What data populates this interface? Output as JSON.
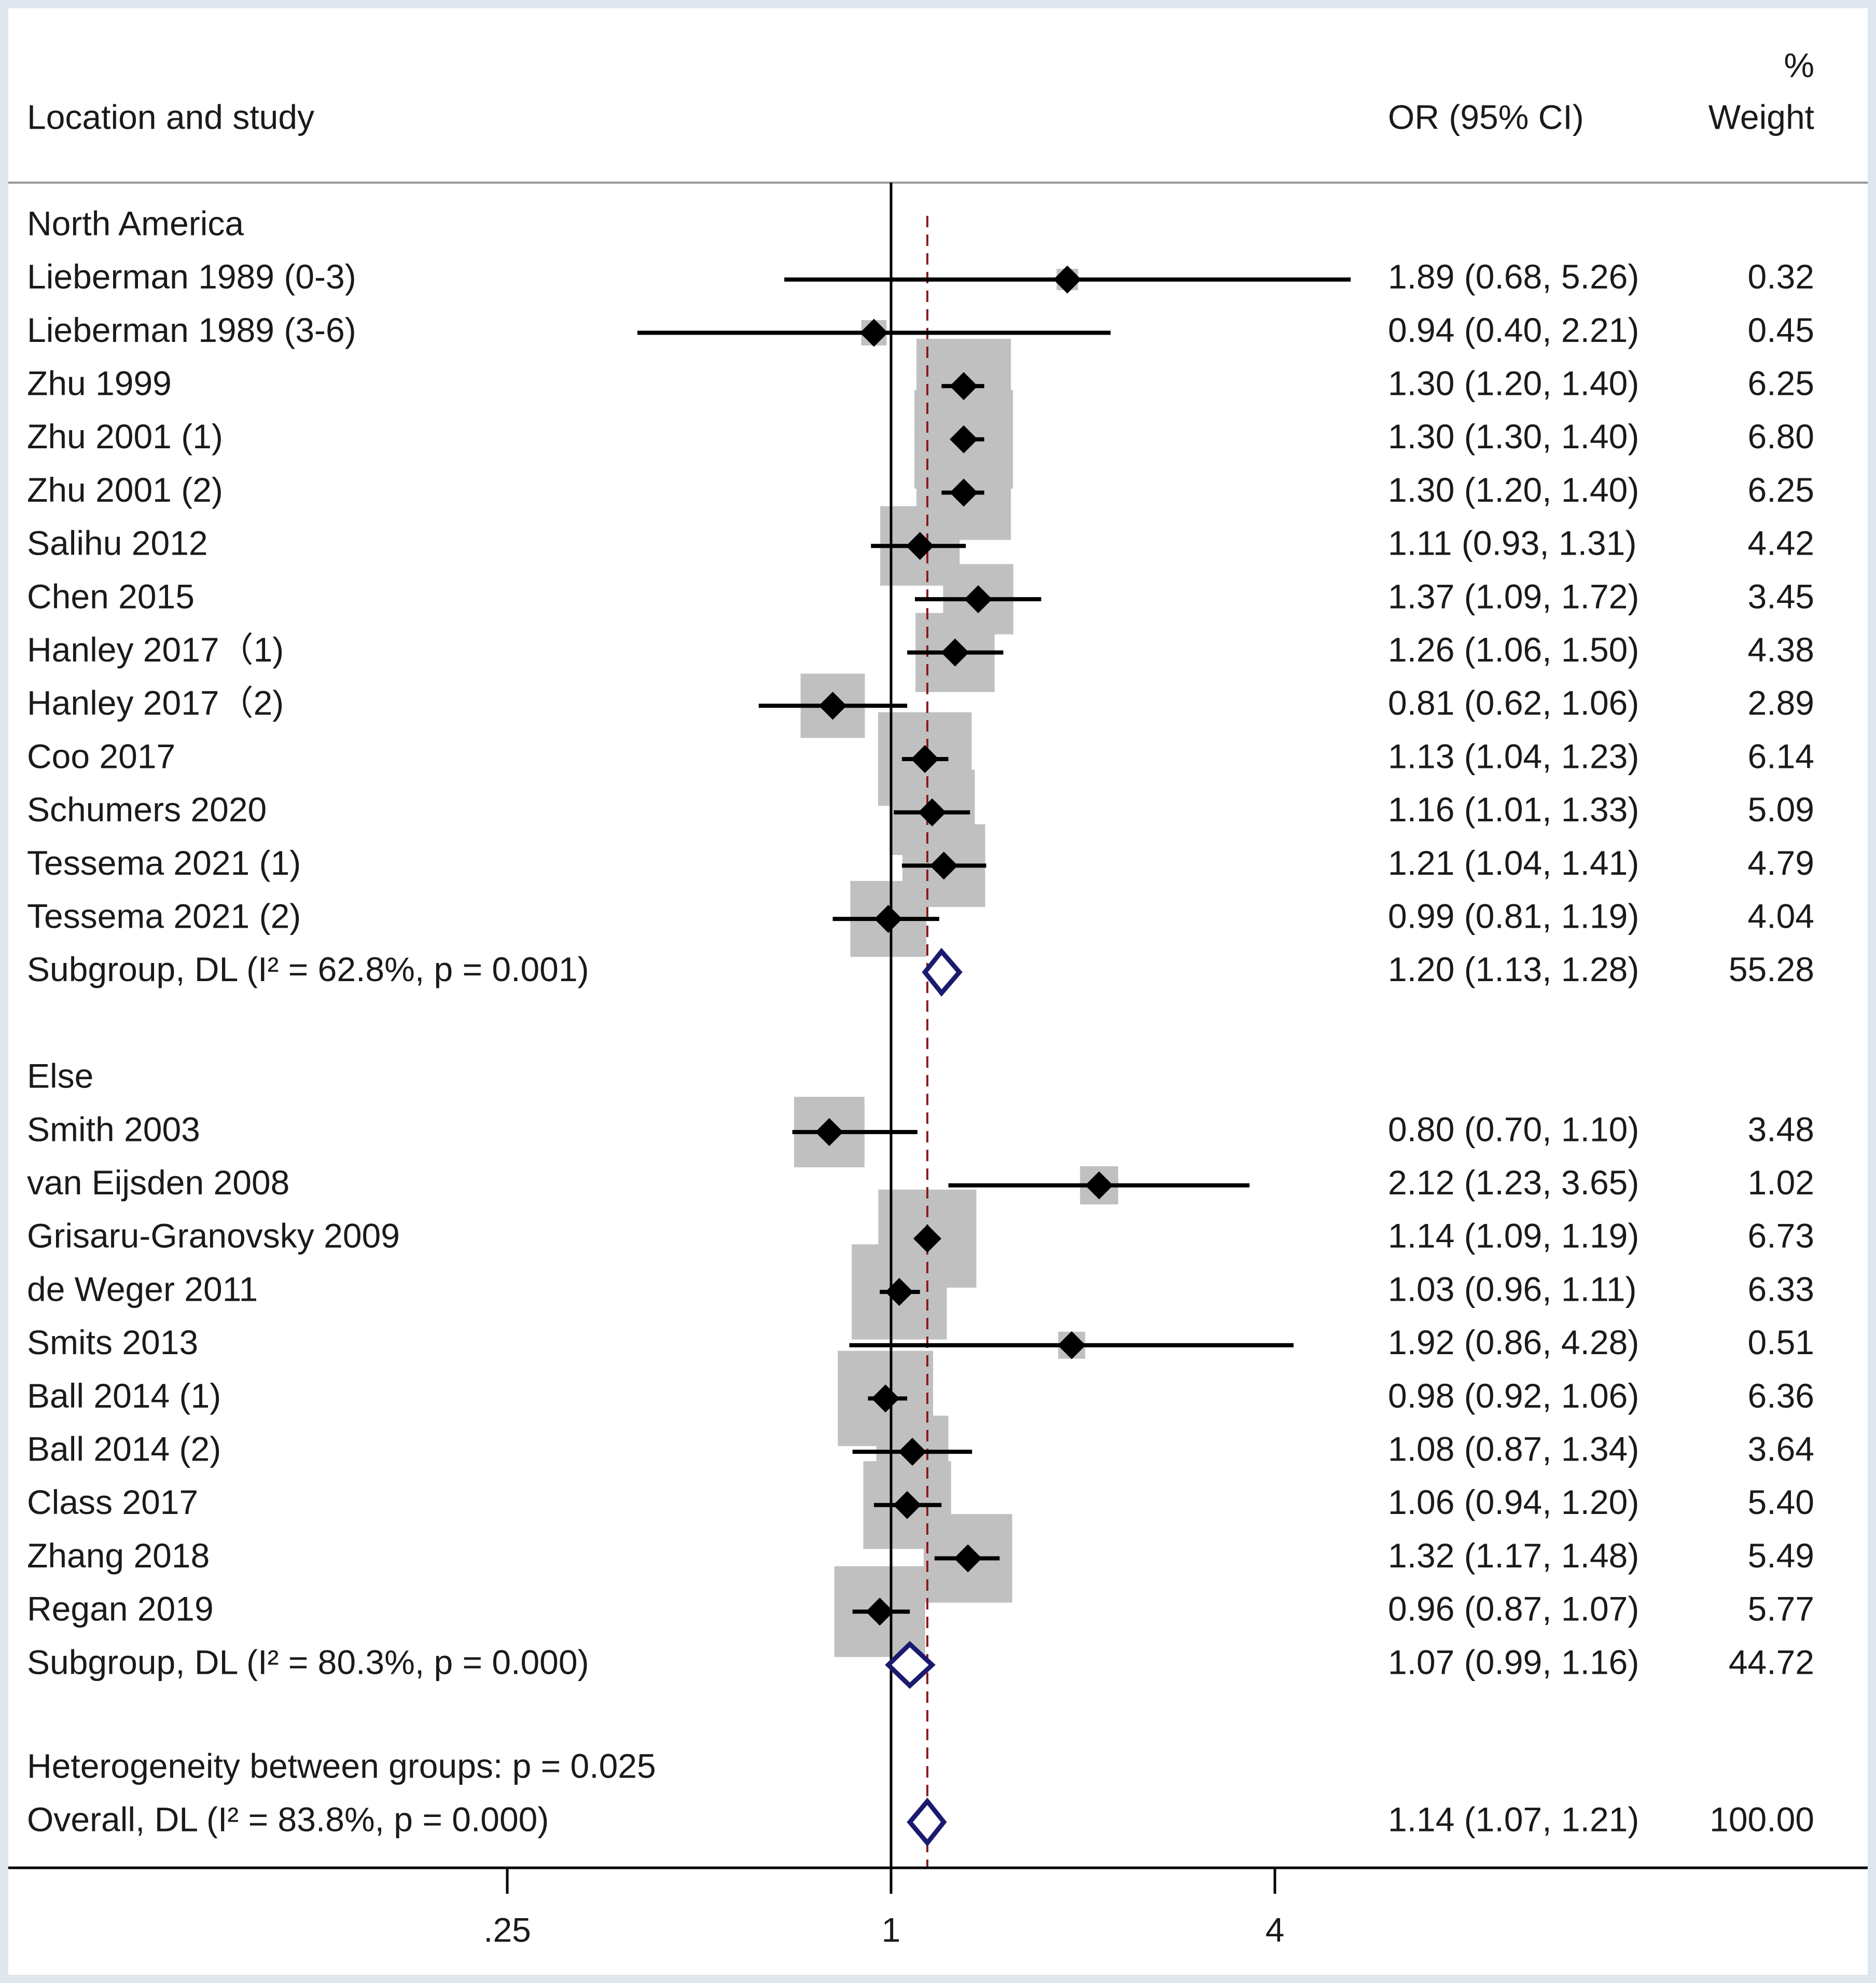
{
  "chart_data": {
    "type": "forest",
    "xscale": "log2",
    "ticks": [
      {
        "value": 0.25,
        "label": ".25"
      },
      {
        "value": 1,
        "label": "1"
      },
      {
        "value": 4,
        "label": "4"
      }
    ],
    "header": {
      "study": "Location and study",
      "or": "OR (95% CI)",
      "weight_pct": "%",
      "weight": "Weight"
    },
    "overall_line": 1.14,
    "groups": [
      {
        "name": "North America",
        "studies": [
          {
            "label": "Lieberman 1989 (0-3)",
            "or": 1.89,
            "lo": 0.68,
            "hi": 5.26,
            "ci": "1.89 (0.68, 5.26)",
            "weight": "0.32"
          },
          {
            "label": "Lieberman 1989 (3-6)",
            "or": 0.94,
            "lo": 0.4,
            "hi": 2.21,
            "ci": "0.94 (0.40, 2.21)",
            "weight": "0.45"
          },
          {
            "label": "Zhu 1999",
            "or": 1.3,
            "lo": 1.2,
            "hi": 1.4,
            "ci": "1.30 (1.20, 1.40)",
            "weight": "6.25"
          },
          {
            "label": "Zhu 2001 (1)",
            "or": 1.3,
            "lo": 1.3,
            "hi": 1.4,
            "ci": "1.30 (1.30, 1.40)",
            "weight": "6.80"
          },
          {
            "label": "Zhu 2001 (2)",
            "or": 1.3,
            "lo": 1.2,
            "hi": 1.4,
            "ci": "1.30 (1.20, 1.40)",
            "weight": "6.25"
          },
          {
            "label": "Salihu 2012",
            "or": 1.11,
            "lo": 0.93,
            "hi": 1.31,
            "ci": "1.11 (0.93, 1.31)",
            "weight": "4.42"
          },
          {
            "label": "Chen 2015",
            "or": 1.37,
            "lo": 1.09,
            "hi": 1.72,
            "ci": "1.37 (1.09, 1.72)",
            "weight": "3.45"
          },
          {
            "label": "Hanley 2017（1)",
            "or": 1.26,
            "lo": 1.06,
            "hi": 1.5,
            "ci": "1.26 (1.06, 1.50)",
            "weight": "4.38"
          },
          {
            "label": "Hanley 2017（2)",
            "or": 0.81,
            "lo": 0.62,
            "hi": 1.06,
            "ci": "0.81 (0.62, 1.06)",
            "weight": "2.89"
          },
          {
            "label": "Coo 2017",
            "or": 1.13,
            "lo": 1.04,
            "hi": 1.23,
            "ci": "1.13 (1.04, 1.23)",
            "weight": "6.14"
          },
          {
            "label": "Schumers 2020",
            "or": 1.16,
            "lo": 1.01,
            "hi": 1.33,
            "ci": "1.16 (1.01, 1.33)",
            "weight": "5.09"
          },
          {
            "label": "Tessema 2021 (1)",
            "or": 1.21,
            "lo": 1.04,
            "hi": 1.41,
            "ci": "1.21 (1.04, 1.41)",
            "weight": "4.79"
          },
          {
            "label": "Tessema 2021 (2)",
            "or": 0.99,
            "lo": 0.81,
            "hi": 1.19,
            "ci": "0.99 (0.81, 1.19)",
            "weight": "4.04"
          }
        ],
        "subtotal": {
          "label": "Subgroup, DL (I² = 62.8%, p = 0.001)",
          "or": 1.2,
          "lo": 1.13,
          "hi": 1.28,
          "ci": "1.20 (1.13, 1.28)",
          "weight": "55.28"
        }
      },
      {
        "name": "Else",
        "studies": [
          {
            "label": "Smith 2003",
            "or": 0.8,
            "lo": 0.7,
            "hi": 1.1,
            "ci": "0.80 (0.70, 1.10)",
            "weight": "3.48"
          },
          {
            "label": "van Eijsden 2008",
            "or": 2.12,
            "lo": 1.23,
            "hi": 3.65,
            "ci": "2.12 (1.23, 3.65)",
            "weight": "1.02"
          },
          {
            "label": "Grisaru-Granovsky 2009",
            "or": 1.14,
            "lo": 1.09,
            "hi": 1.19,
            "ci": "1.14 (1.09, 1.19)",
            "weight": "6.73"
          },
          {
            "label": "de Weger 2011",
            "or": 1.03,
            "lo": 0.96,
            "hi": 1.11,
            "ci": "1.03 (0.96, 1.11)",
            "weight": "6.33"
          },
          {
            "label": "Smits 2013",
            "or": 1.92,
            "lo": 0.86,
            "hi": 4.28,
            "ci": "1.92 (0.86, 4.28)",
            "weight": "0.51"
          },
          {
            "label": "Ball 2014 (1)",
            "or": 0.98,
            "lo": 0.92,
            "hi": 1.06,
            "ci": "0.98 (0.92, 1.06)",
            "weight": "6.36"
          },
          {
            "label": "Ball 2014 (2)",
            "or": 1.08,
            "lo": 0.87,
            "hi": 1.34,
            "ci": "1.08 (0.87, 1.34)",
            "weight": "3.64"
          },
          {
            "label": "Class 2017",
            "or": 1.06,
            "lo": 0.94,
            "hi": 1.2,
            "ci": "1.06 (0.94, 1.20)",
            "weight": "5.40"
          },
          {
            "label": "Zhang 2018",
            "or": 1.32,
            "lo": 1.17,
            "hi": 1.48,
            "ci": "1.32 (1.17, 1.48)",
            "weight": "5.49"
          },
          {
            "label": "Regan 2019",
            "or": 0.96,
            "lo": 0.87,
            "hi": 1.07,
            "ci": "0.96 (0.87, 1.07)",
            "weight": "5.77"
          }
        ],
        "subtotal": {
          "label": "Subgroup, DL (I² = 80.3%, p = 0.000)",
          "or": 1.07,
          "lo": 0.99,
          "hi": 1.16,
          "ci": "1.07 (0.99, 1.16)",
          "weight": "44.72"
        }
      }
    ],
    "heterogeneity": "Heterogeneity between groups: p = 0.025",
    "overall": {
      "label": "Overall, DL (I² = 83.8%, p = 0.000)",
      "or": 1.14,
      "lo": 1.07,
      "hi": 1.21,
      "ci": "1.14 (1.07, 1.21)",
      "weight": "100.00"
    },
    "colors": {
      "box": "#c0c0c0",
      "diamond_stroke": "#1a1a6e",
      "ref_line": "#8b1a1a",
      "text": "#1a1a1a"
    }
  }
}
